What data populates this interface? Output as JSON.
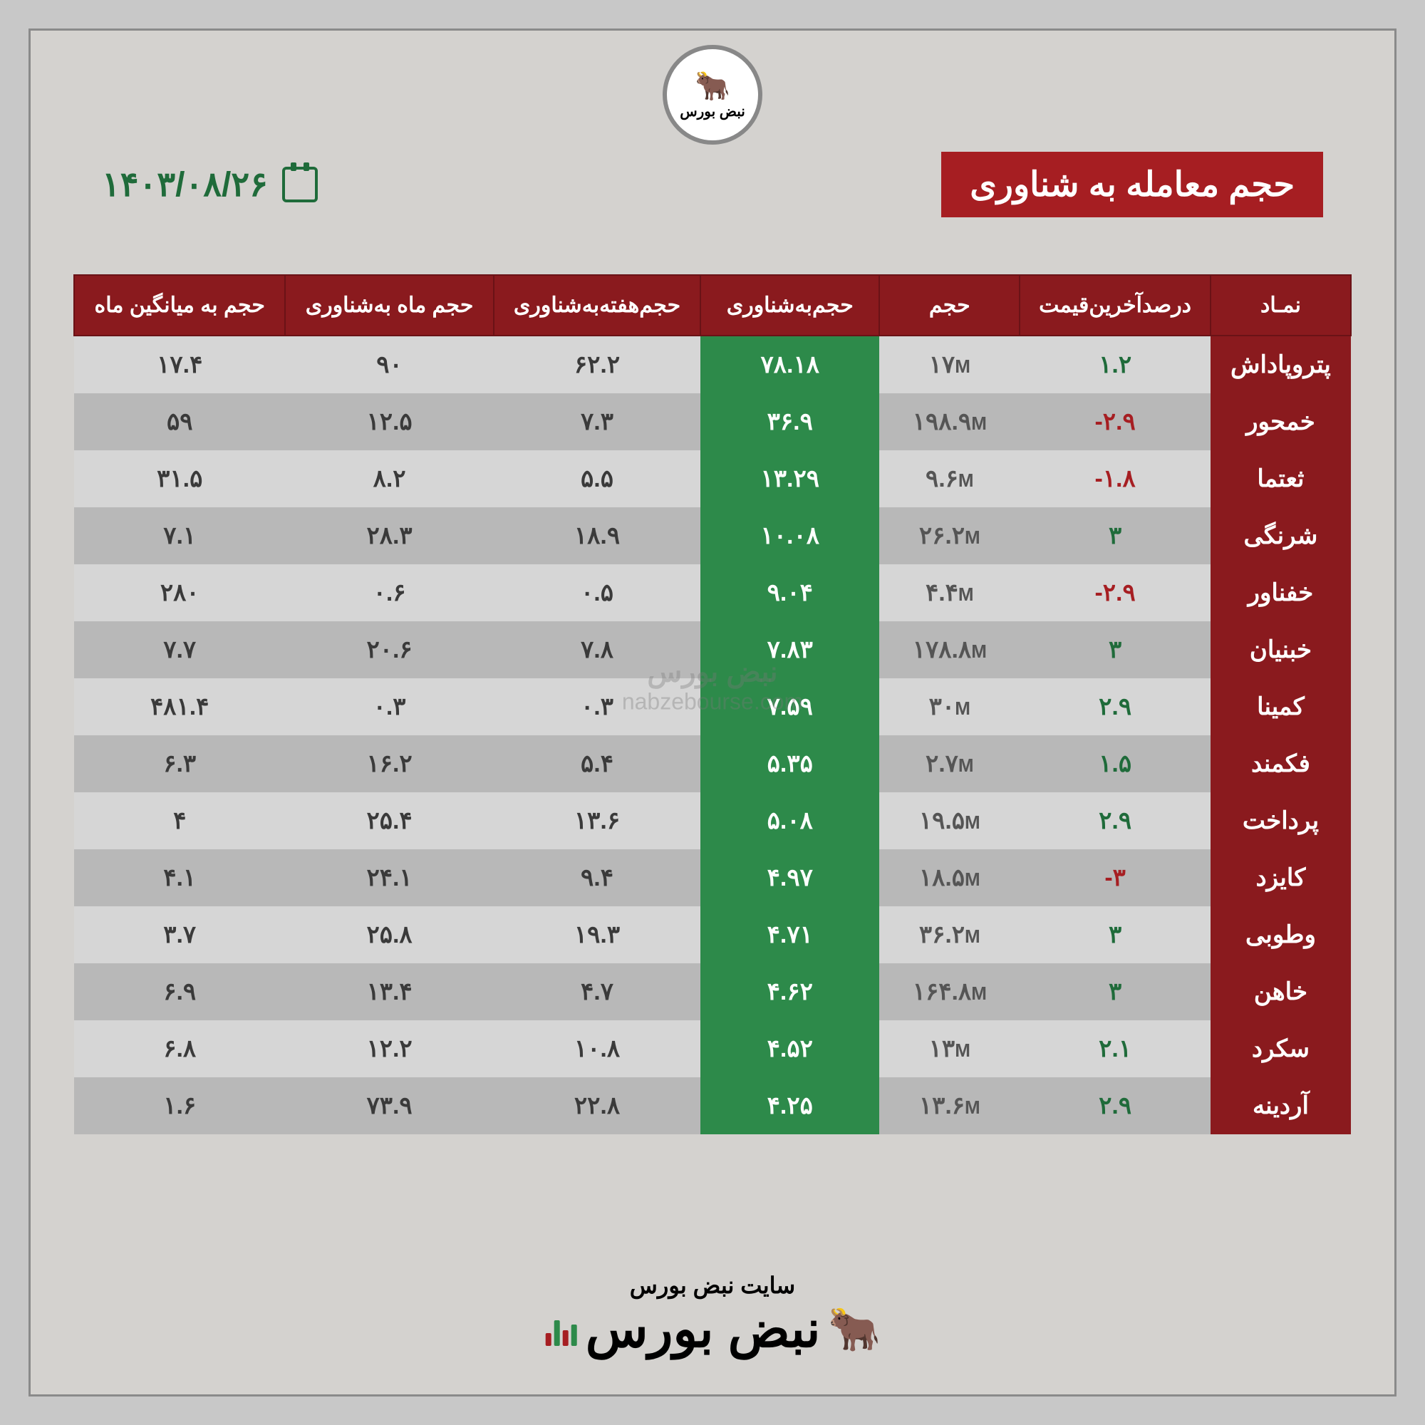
{
  "title": "حجم معامله به شناوری",
  "date": "۱۴۰۳/۰۸/۲۶",
  "watermark_brand": "نبض بورس",
  "watermark_url": "nabzebourse.com",
  "footer_site": "سایت نبض بورس",
  "footer_brand": "نبض بورس",
  "logo_text": "نبض بورس",
  "columns": [
    "نمـاد",
    "درصدآخرین‌قیمت",
    "حجم",
    "حجم‌به‌شناوری",
    "حجم‌هفته‌به‌شناوری",
    "حجم ماه به‌شناوری",
    "حجم به میانگین ماه"
  ],
  "rows": [
    {
      "symbol": "پتروپاداش",
      "pct": "۱.۲",
      "pct_cls": "pos",
      "vol": "۱۷",
      "float": "۷۸.۱۸",
      "week": "۶۲.۲",
      "month": "۹۰",
      "avg": "۱۷.۴"
    },
    {
      "symbol": "خمحور",
      "pct": "-۲.۹",
      "pct_cls": "neg",
      "vol": "۱۹۸.۹",
      "float": "۳۶.۹",
      "week": "۷.۳",
      "month": "۱۲.۵",
      "avg": "۵۹"
    },
    {
      "symbol": "ثعتما",
      "pct": "-۱.۸",
      "pct_cls": "neg",
      "vol": "۹.۶",
      "float": "۱۳.۲۹",
      "week": "۵.۵",
      "month": "۸.۲",
      "avg": "۳۱.۵"
    },
    {
      "symbol": "شرنگی",
      "pct": "۳",
      "pct_cls": "pos",
      "vol": "۲۶.۲",
      "float": "۱۰.۰۸",
      "week": "۱۸.۹",
      "month": "۲۸.۳",
      "avg": "۷.۱"
    },
    {
      "symbol": "خفناور",
      "pct": "-۲.۹",
      "pct_cls": "neg",
      "vol": "۴.۴",
      "float": "۹.۰۴",
      "week": "۰.۵",
      "month": "۰.۶",
      "avg": "۲۸۰"
    },
    {
      "symbol": "خبنیان",
      "pct": "۳",
      "pct_cls": "pos",
      "vol": "۱۷۸.۸",
      "float": "۷.۸۳",
      "week": "۷.۸",
      "month": "۲۰.۶",
      "avg": "۷.۷"
    },
    {
      "symbol": "کمینا",
      "pct": "۲.۹",
      "pct_cls": "pos",
      "vol": "۳۰",
      "float": "۷.۵۹",
      "week": "۰.۳",
      "month": "۰.۳",
      "avg": "۴۸۱.۴"
    },
    {
      "symbol": "فکمند",
      "pct": "۱.۵",
      "pct_cls": "pos",
      "vol": "۲.۷",
      "float": "۵.۳۵",
      "week": "۵.۴",
      "month": "۱۶.۲",
      "avg": "۶.۳"
    },
    {
      "symbol": "پرداخت",
      "pct": "۲.۹",
      "pct_cls": "pos",
      "vol": "۱۹.۵",
      "float": "۵.۰۸",
      "week": "۱۳.۶",
      "month": "۲۵.۴",
      "avg": "۴"
    },
    {
      "symbol": "کایزد",
      "pct": "-۳",
      "pct_cls": "neg",
      "vol": "۱۸.۵",
      "float": "۴.۹۷",
      "week": "۹.۴",
      "month": "۲۴.۱",
      "avg": "۴.۱"
    },
    {
      "symbol": "وطوبی",
      "pct": "۳",
      "pct_cls": "pos",
      "vol": "۳۶.۲",
      "float": "۴.۷۱",
      "week": "۱۹.۳",
      "month": "۲۵.۸",
      "avg": "۳.۷"
    },
    {
      "symbol": "خاهن",
      "pct": "۳",
      "pct_cls": "pos",
      "vol": "۱۶۴.۸",
      "float": "۴.۶۲",
      "week": "۴.۷",
      "month": "۱۳.۴",
      "avg": "۶.۹"
    },
    {
      "symbol": "سکرد",
      "pct": "۲.۱",
      "pct_cls": "pos",
      "vol": "۱۳",
      "float": "۴.۵۲",
      "week": "۱۰.۸",
      "month": "۱۲.۲",
      "avg": "۶.۸"
    },
    {
      "symbol": "آردینه",
      "pct": "۲.۹",
      "pct_cls": "pos",
      "vol": "۱۳.۶",
      "float": "۴.۲۵",
      "week": "۲۲.۸",
      "month": "۷۳.۹",
      "avg": "۱.۶"
    }
  ],
  "colors": {
    "header_bg": "#8a1a1e",
    "float_bg": "#2d8a4a",
    "title_bg": "#a61e22",
    "pos": "#1f6b3a",
    "neg": "#a61e22",
    "page_bg": "#d4d2cf"
  }
}
